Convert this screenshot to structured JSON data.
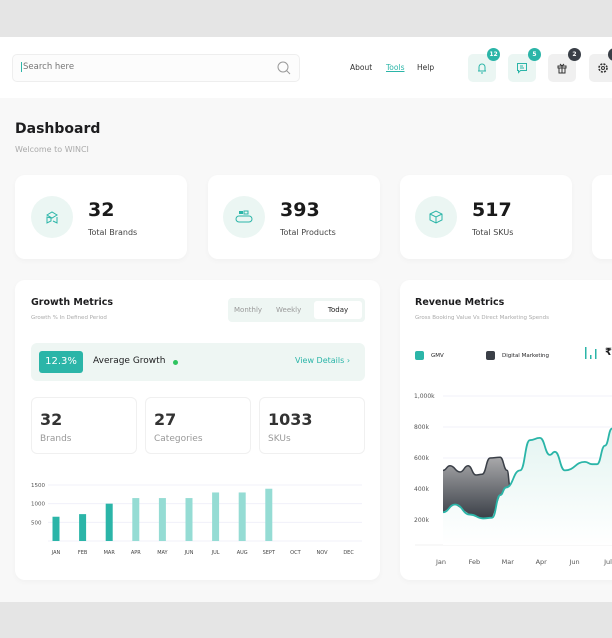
{
  "header": {
    "search_placeholder": "Search here",
    "nav": [
      "About",
      "Tools",
      "Help"
    ],
    "active_nav": "Tools",
    "icons": [
      {
        "name": "bell-icon",
        "badge": "12",
        "badge_color": "#2bb5a8"
      },
      {
        "name": "message-icon",
        "badge": "5",
        "badge_color": "#2bb5a8"
      },
      {
        "name": "gift-icon",
        "badge": "2",
        "badge_color": "#3a3f47"
      },
      {
        "name": "gear-icon",
        "badge": "",
        "badge_color": "#3a3f47"
      }
    ]
  },
  "page": {
    "title": "Dashboard",
    "subtitle": "Welcome to WINCI"
  },
  "stats": [
    {
      "value": "32",
      "label": "Total Brands",
      "icon": "brand-box-icon"
    },
    {
      "value": "393",
      "label": "Total Products",
      "icon": "conveyor-icon"
    },
    {
      "value": "517",
      "label": "Total SKUs",
      "icon": "package-icon"
    }
  ],
  "growth": {
    "title": "Growth Metrics",
    "subtitle": "Growth % In Defined Period",
    "tabs": [
      "Monthly",
      "Weekly",
      "Today"
    ],
    "active_tab": "Today",
    "average": {
      "value": "12.3%",
      "label": "Average Growth",
      "link": "View Details"
    },
    "mini": [
      {
        "value": "32",
        "label": "Brands"
      },
      {
        "value": "27",
        "label": "Categories"
      },
      {
        "value": "1033",
        "label": "SKUs"
      }
    ]
  },
  "revenue": {
    "title": "Revenue Metrics",
    "subtitle": "Gross Booking Value Vs Direct Marketing Spends",
    "legend": [
      "GMV",
      "Digital Marketing"
    ],
    "currency": "₹"
  },
  "colors": {
    "accent": "#2bb5a8",
    "accent_light": "#95dcd4",
    "dark": "#3a3f47"
  },
  "chart_data": [
    {
      "type": "bar",
      "categories": [
        "JAN",
        "FEB",
        "MAR",
        "APR",
        "MAY",
        "JUN",
        "JUL",
        "AUG",
        "SEPT",
        "OCT",
        "NOV",
        "DEC"
      ],
      "values": [
        650,
        720,
        1000,
        1150,
        1150,
        1150,
        1300,
        1300,
        1400,
        null,
        null,
        null
      ],
      "yticks": [
        "500",
        "1000",
        "1500"
      ],
      "ylim": [
        0,
        1500
      ],
      "grid": true
    },
    {
      "type": "area",
      "categories": [
        "Jan",
        "Feb",
        "Mar",
        "Apr",
        "Jun",
        "Jul"
      ],
      "ytick_labels": [
        "200k",
        "400k",
        "600k",
        "800k",
        "1,000k"
      ],
      "ylim": [
        0,
        1000
      ],
      "grid": true,
      "legend": "top-left",
      "series": [
        {
          "name": "GMV",
          "x": [
            0.06,
            0.42,
            0.87,
            1.26,
            1.53,
            1.77,
            1.95,
            2.37,
            2.66,
            2.96,
            3.26,
            3.41,
            3.71,
            4.31,
            4.52,
            4.67,
            4.91,
            5.12
          ],
          "y": [
            250,
            300,
            235,
            210,
            215,
            360,
            410,
            520,
            715,
            730,
            620,
            640,
            520,
            575,
            560,
            560,
            680,
            790
          ]
        },
        {
          "name": "Digital Marketing",
          "x": [
            0.06,
            0.27,
            0.57,
            0.81,
            1.05,
            1.23,
            1.47,
            1.77,
            1.98,
            2.07
          ],
          "y": [
            520,
            550,
            510,
            550,
            490,
            495,
            600,
            605,
            520,
            420
          ]
        }
      ]
    }
  ]
}
